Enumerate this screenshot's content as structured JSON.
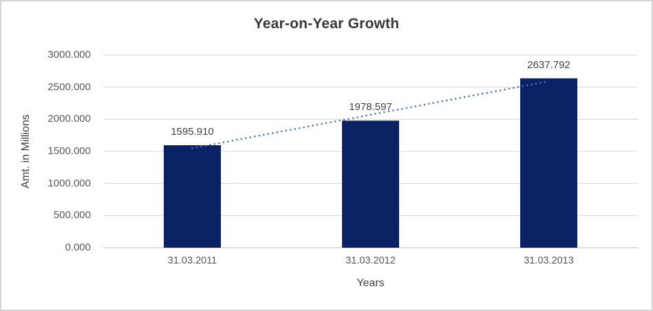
{
  "window": {
    "background": "#ffffff",
    "border_color": "#d4d4d4"
  },
  "chart_data": {
    "type": "bar",
    "title": "Year-on-Year Growth",
    "xlabel": "Years",
    "ylabel": "Amt. in Millions",
    "categories": [
      "31.03.2011",
      "31.03.2012",
      "31.03.2013"
    ],
    "values": [
      1595.91,
      1978.597,
      2637.792
    ],
    "data_labels": [
      "1595.910",
      "1978.597",
      "2637.792"
    ],
    "ylim": [
      0,
      3000
    ],
    "y_tick_step": 500,
    "y_tick_labels": [
      "0.000",
      "500.000",
      "1000.000",
      "1500.000",
      "2000.000",
      "2500.000",
      "3000.000"
    ],
    "grid": true,
    "legend": false,
    "bar_color": "#0a2264",
    "gridline_color": "#d9d9d9",
    "axis_line_color": "#d2d2d2",
    "label_color": "#404040",
    "tick_label_color": "#595959",
    "trendline": {
      "type": "linear",
      "style": "dotted",
      "color": "#4573c6"
    }
  }
}
